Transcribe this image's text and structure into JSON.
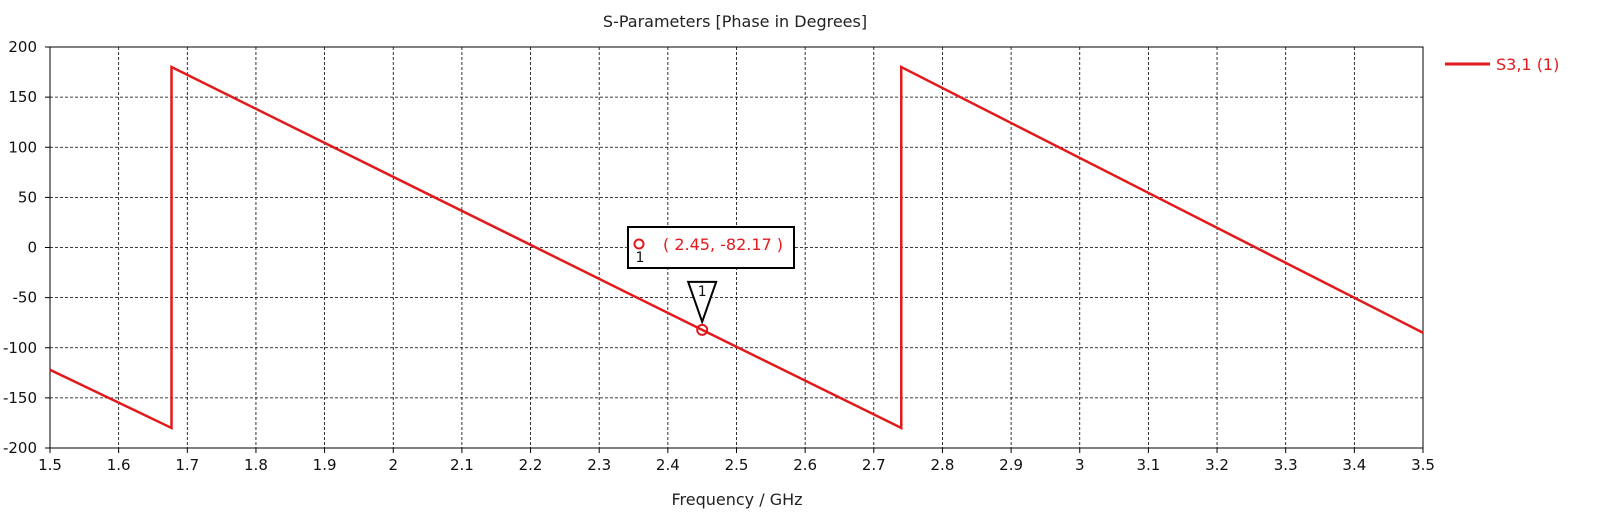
{
  "chart_data": {
    "type": "line",
    "title": "S-Parameters [Phase in Degrees]",
    "xlabel": "Frequency / GHz",
    "ylabel": "",
    "xlim": [
      1.5,
      3.5
    ],
    "ylim": [
      -200,
      200
    ],
    "x_ticks": [
      "1.5",
      "1.6",
      "1.7",
      "1.8",
      "1.9",
      "2",
      "2.1",
      "2.2",
      "2.3",
      "2.4",
      "2.5",
      "2.6",
      "2.7",
      "2.8",
      "2.9",
      "3",
      "3.1",
      "3.2",
      "3.3",
      "3.4",
      "3.5"
    ],
    "y_ticks": [
      "200",
      "150",
      "100",
      "50",
      "0",
      "-50",
      "-100",
      "-150",
      "-200"
    ],
    "grid": true,
    "legend_position": "right",
    "colors": {
      "series": "#e31a1c",
      "axis": "#000000",
      "grid": "#000000"
    },
    "series": [
      {
        "name": "S3,1 (1)",
        "x": [
          1.5,
          1.677,
          1.677,
          2.45,
          2.74,
          2.74,
          3.5
        ],
        "y": [
          -122,
          -180,
          180,
          -82.17,
          -180,
          180,
          -85
        ]
      }
    ],
    "marker": {
      "id": "1",
      "x": 2.45,
      "y": -82.17,
      "label": "( 2.45, -82.17 )"
    }
  }
}
